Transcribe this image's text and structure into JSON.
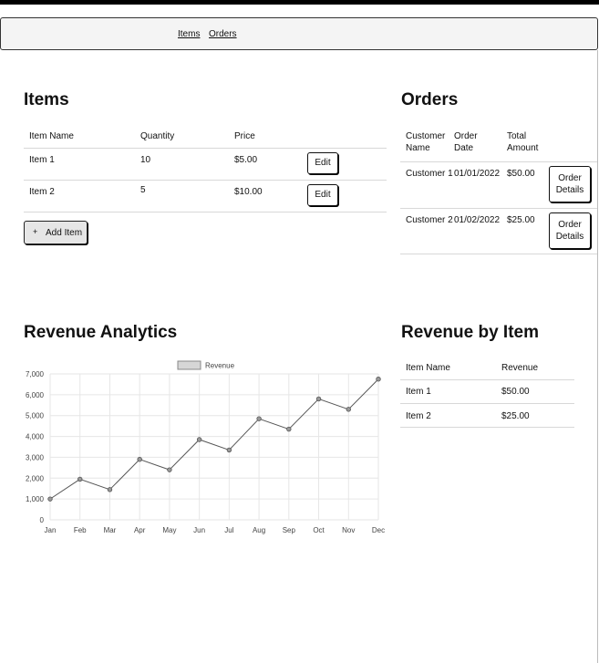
{
  "nav": {
    "items_link": "Items",
    "orders_link": "Orders"
  },
  "items": {
    "title": "Items",
    "columns": [
      "Item Name",
      "Quantity",
      "Price"
    ],
    "rows": [
      {
        "name": "Item 1",
        "quantity": "10",
        "price": "$5.00",
        "action": "Edit"
      },
      {
        "name": "Item 2",
        "quantity": "5",
        "price": "$10.00",
        "action": "Edit"
      }
    ],
    "add_button": "Add Item",
    "add_icon": "+"
  },
  "orders": {
    "title": "Orders",
    "columns": [
      "Customer Name",
      "Order Date",
      "Total Amount"
    ],
    "rows": [
      {
        "customer": "Customer 1",
        "date": "01/01/2022",
        "amount": "$50.00",
        "action": "Order Details"
      },
      {
        "customer": "Customer 2",
        "date": "01/02/2022",
        "amount": "$25.00",
        "action": "Order Details"
      }
    ]
  },
  "analytics": {
    "title": "Revenue Analytics"
  },
  "revenue_by_item": {
    "title": "Revenue by Item",
    "columns": [
      "Item Name",
      "Revenue"
    ],
    "rows": [
      {
        "name": "Item 1",
        "revenue": "$50.00"
      },
      {
        "name": "Item 2",
        "revenue": "$25.00"
      }
    ]
  },
  "chart_data": {
    "type": "line",
    "title": "",
    "xlabel": "",
    "ylabel": "",
    "categories": [
      "Jan",
      "Feb",
      "Mar",
      "Apr",
      "May",
      "Jun",
      "Jul",
      "Aug",
      "Sep",
      "Oct",
      "Nov",
      "Dec"
    ],
    "series": [
      {
        "name": "Revenue",
        "values": [
          1000,
          1950,
          1450,
          2900,
          2400,
          3850,
          3350,
          4850,
          4350,
          5800,
          5300,
          6750
        ]
      }
    ],
    "yticks": [
      "0",
      "1,000",
      "2,000",
      "3,000",
      "4,000",
      "5,000",
      "6,000",
      "7,000"
    ],
    "ylim": [
      0,
      7000
    ],
    "grid": true,
    "legend": "top-center",
    "line_color": "#555555",
    "point_fill": "#999999"
  }
}
